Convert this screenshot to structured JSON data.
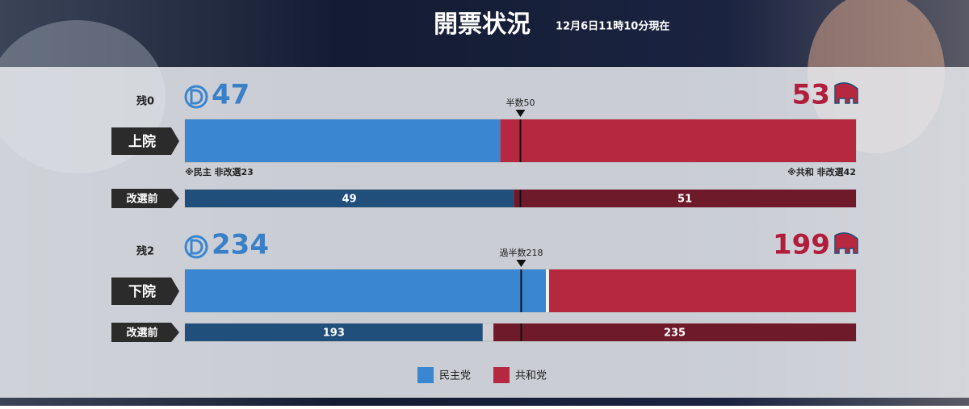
{
  "header": {
    "title": "開票状況",
    "timestamp": "12月6日11時10分現在"
  },
  "legend": [
    {
      "name": "民主党",
      "color": "#3a86d0",
      "previous_color": "#1f4f7a",
      "text_color": "#3a80c8"
    },
    {
      "name": "共和党",
      "color": "#b62840",
      "previous_color": "#6e1a2b",
      "text_color": "#b01e3c"
    }
  ],
  "chambers": [
    {
      "name": "上院",
      "remaining": {
        "value": 0,
        "label": "残0"
      },
      "dem": 47,
      "rep": 53,
      "majority": {
        "value": 50,
        "label": "半数50"
      },
      "notes": [
        "※民主 非改選23",
        "※共和 非改選42"
      ],
      "previous": {
        "label": "改選前",
        "dem": 49,
        "rep": 51
      }
    },
    {
      "name": "下院",
      "remaining": {
        "value": 2,
        "label": "残2"
      },
      "dem": 234,
      "rep": 199,
      "majority": {
        "value": 218,
        "label": "過半数218"
      },
      "previous": {
        "label": "改選前",
        "dem": 193,
        "rep": 235
      }
    }
  ]
}
